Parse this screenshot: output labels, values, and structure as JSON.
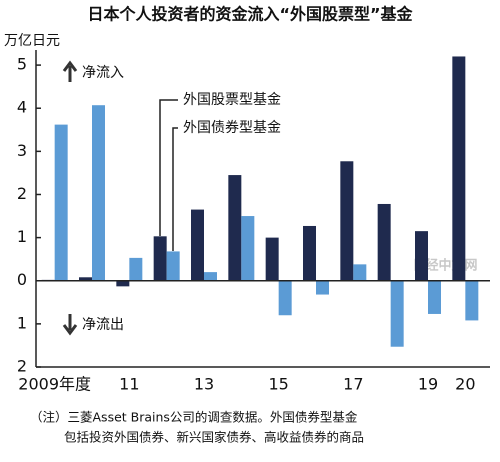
{
  "chart_data": {
    "type": "bar",
    "title": "日本个人投资者的资金流入“外国股票型”基金",
    "y_axis_label": "万亿日元",
    "categories": [
      "2009年度",
      null,
      "11",
      null,
      "13",
      null,
      "15",
      null,
      "17",
      null,
      "19",
      "20"
    ],
    "series": [
      {
        "name": "外国股票型基金",
        "color": "#1f2a4e",
        "values": [
          0.02,
          0.08,
          -0.13,
          1.03,
          1.65,
          2.45,
          1.0,
          1.27,
          2.77,
          1.78,
          1.15,
          5.2
        ]
      },
      {
        "name": "外国债券型基金",
        "color": "#5b9bd5",
        "values": [
          3.62,
          4.07,
          0.53,
          0.68,
          0.2,
          1.5,
          -0.8,
          -0.32,
          0.38,
          -1.53,
          -0.77,
          -0.92
        ]
      }
    ],
    "ylim": [
      -2,
      5.35
    ],
    "yticks": [
      {
        "value": -2,
        "label": "2"
      },
      {
        "value": -1,
        "label": "1"
      },
      0,
      1,
      2,
      3,
      4,
      5
    ],
    "annotations": {
      "inflow": "净流入",
      "outflow": "净流出"
    },
    "watermark": "日经中文网",
    "notes": [
      "（注）三菱Asset Brains公司的调查数据。外国债券型基金",
      "包括投资外国债券、新兴国家债券、高收益债券的商品"
    ]
  }
}
